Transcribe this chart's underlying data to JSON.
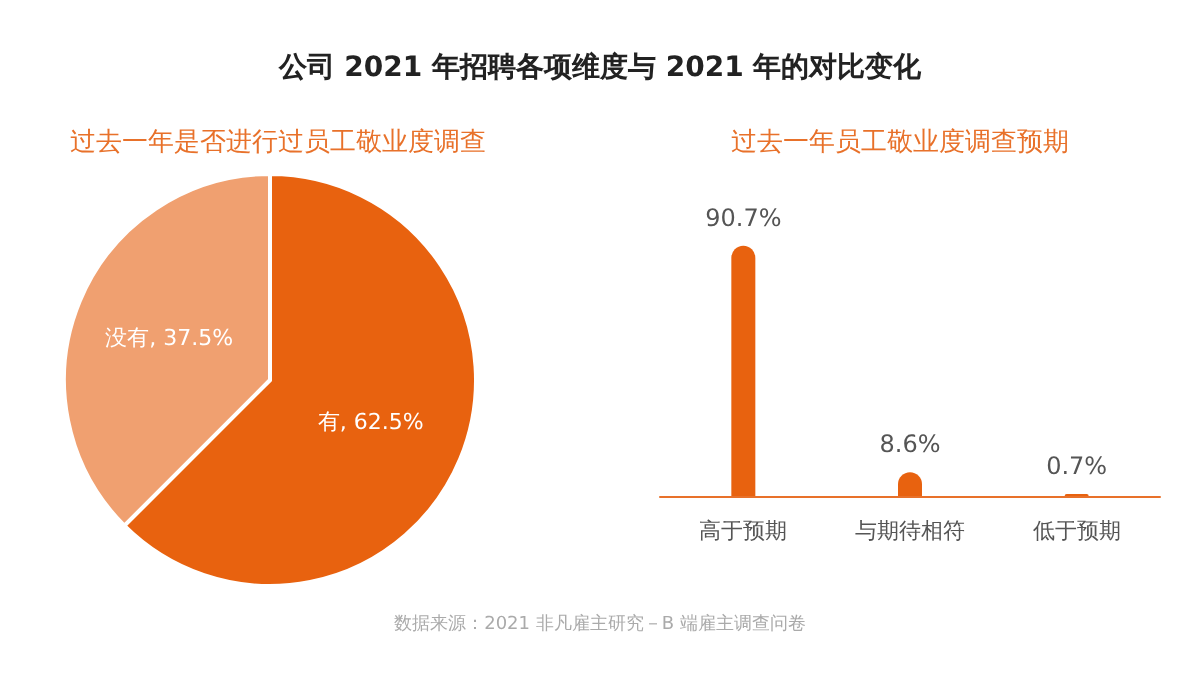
{
  "chart_data": [
    {
      "type": "pie",
      "title": "公司 2021 年招聘各项维度与 2021 年的对比变化",
      "subtitle": "过去一年是否进行过员工敬业度调查",
      "categories": [
        "有",
        "没有"
      ],
      "values": [
        62.5,
        37.5
      ],
      "colors": [
        "#e8620f",
        "#f0a070"
      ],
      "value_labels": [
        "62.5%",
        "37.5%"
      ],
      "legend": false,
      "annotations": [
        "数据来源：2021 非凡雇主研究－B 端雇主调查问卷"
      ]
    },
    {
      "type": "bar",
      "title": "过去一年员工敬业度调查预期",
      "categories": [
        "高于预期",
        "与期待相符",
        "低于预期"
      ],
      "values": [
        90.7,
        8.6,
        0.7
      ],
      "color": "#e8620f",
      "value_labels": [
        "90.7%",
        "8.6%",
        "0.7%"
      ],
      "grid": false,
      "legend": false
    }
  ]
}
